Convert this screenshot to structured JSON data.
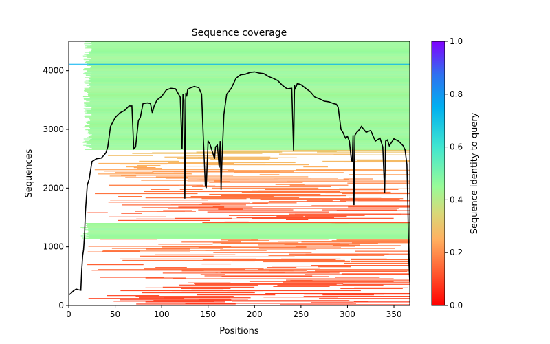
{
  "chart_data": {
    "type": "heatmap",
    "title": "Sequence coverage",
    "xlabel": "Positions",
    "ylabel": "Sequences",
    "xlim": [
      0,
      367
    ],
    "ylim": [
      0,
      4500
    ],
    "xticks": [
      0,
      50,
      100,
      150,
      200,
      250,
      300,
      350
    ],
    "yticks": [
      0,
      1000,
      2000,
      3000,
      4000
    ],
    "grid": false,
    "colorbar": {
      "label": "Sequence identity to query",
      "range": [
        0.0,
        1.0
      ],
      "ticks": [
        "0.0",
        "0.2",
        "0.4",
        "0.6",
        "0.8",
        "1.0"
      ],
      "colormap": "rainbow_r",
      "stops": [
        "#ff0000",
        "#ff7f40",
        "#ffb860",
        "#d8d878",
        "#98fb98",
        "#40e0d0",
        "#00b0f0",
        "#3060f0",
        "#8000ff"
      ]
    },
    "alignment_bands": [
      {
        "seq_range": [
          0,
          1130
        ],
        "identity": 0.12,
        "start_min": 15,
        "note": "low-identity sparse rows"
      },
      {
        "seq_range": [
          1130,
          1400
        ],
        "identity": 0.45,
        "start_min": 12,
        "note": "high-identity band"
      },
      {
        "seq_range": [
          1400,
          2000
        ],
        "identity": 0.14,
        "start_min": 20
      },
      {
        "seq_range": [
          2000,
          2650
        ],
        "identity": 0.27,
        "start_min": 18
      },
      {
        "seq_range": [
          2650,
          4500
        ],
        "identity": 0.45,
        "start_min": 15
      }
    ],
    "query_line": {
      "seq": 4110,
      "identity": 0.75
    },
    "coverage_series": {
      "name": "coverage",
      "color": "#000000",
      "x": [
        0,
        2,
        5,
        8,
        10,
        13,
        14,
        15,
        16,
        17,
        18,
        20,
        22,
        25,
        30,
        35,
        38,
        40,
        42,
        45,
        50,
        55,
        60,
        65,
        68,
        70,
        72,
        75,
        77,
        80,
        85,
        88,
        90,
        92,
        95,
        100,
        105,
        110,
        115,
        120,
        122,
        123,
        124,
        125,
        126,
        127,
        128,
        130,
        135,
        140,
        143,
        145,
        147,
        148,
        150,
        152,
        155,
        157,
        158,
        160,
        162,
        163,
        164,
        165,
        167,
        170,
        175,
        180,
        185,
        190,
        195,
        200,
        205,
        210,
        215,
        220,
        225,
        230,
        235,
        240,
        242,
        243,
        244,
        246,
        250,
        255,
        260,
        265,
        270,
        275,
        280,
        285,
        288,
        290,
        293,
        295,
        298,
        300,
        302,
        304,
        305,
        306,
        307,
        308,
        310,
        312,
        315,
        320,
        325,
        330,
        335,
        338,
        340,
        341,
        343,
        345,
        350,
        355,
        360,
        362,
        364,
        365,
        366,
        367
      ],
      "y": [
        180,
        200,
        250,
        280,
        270,
        260,
        600,
        850,
        950,
        1200,
        1600,
        2050,
        2150,
        2450,
        2500,
        2510,
        2560,
        2600,
        2700,
        3050,
        3200,
        3280,
        3320,
        3400,
        3400,
        2670,
        2700,
        3150,
        3200,
        3440,
        3450,
        3440,
        3280,
        3400,
        3500,
        3560,
        3670,
        3700,
        3690,
        3550,
        2660,
        3600,
        3500,
        1820,
        3620,
        3560,
        3680,
        3700,
        3730,
        3710,
        3600,
        2800,
        2050,
        2000,
        2800,
        2750,
        2600,
        2500,
        2700,
        2730,
        2350,
        2800,
        1970,
        2500,
        3250,
        3600,
        3700,
        3870,
        3930,
        3940,
        3970,
        3980,
        3960,
        3950,
        3900,
        3870,
        3830,
        3750,
        3690,
        3700,
        2640,
        3750,
        3700,
        3780,
        3760,
        3700,
        3640,
        3550,
        3520,
        3480,
        3470,
        3440,
        3430,
        3380,
        3000,
        2950,
        2850,
        2880,
        2800,
        2500,
        2450,
        2900,
        1710,
        2900,
        2950,
        2980,
        3050,
        2950,
        2980,
        2800,
        2850,
        2700,
        1920,
        2800,
        2820,
        2720,
        2840,
        2800,
        2720,
        2650,
        2400,
        1700,
        800,
        400
      ]
    }
  }
}
